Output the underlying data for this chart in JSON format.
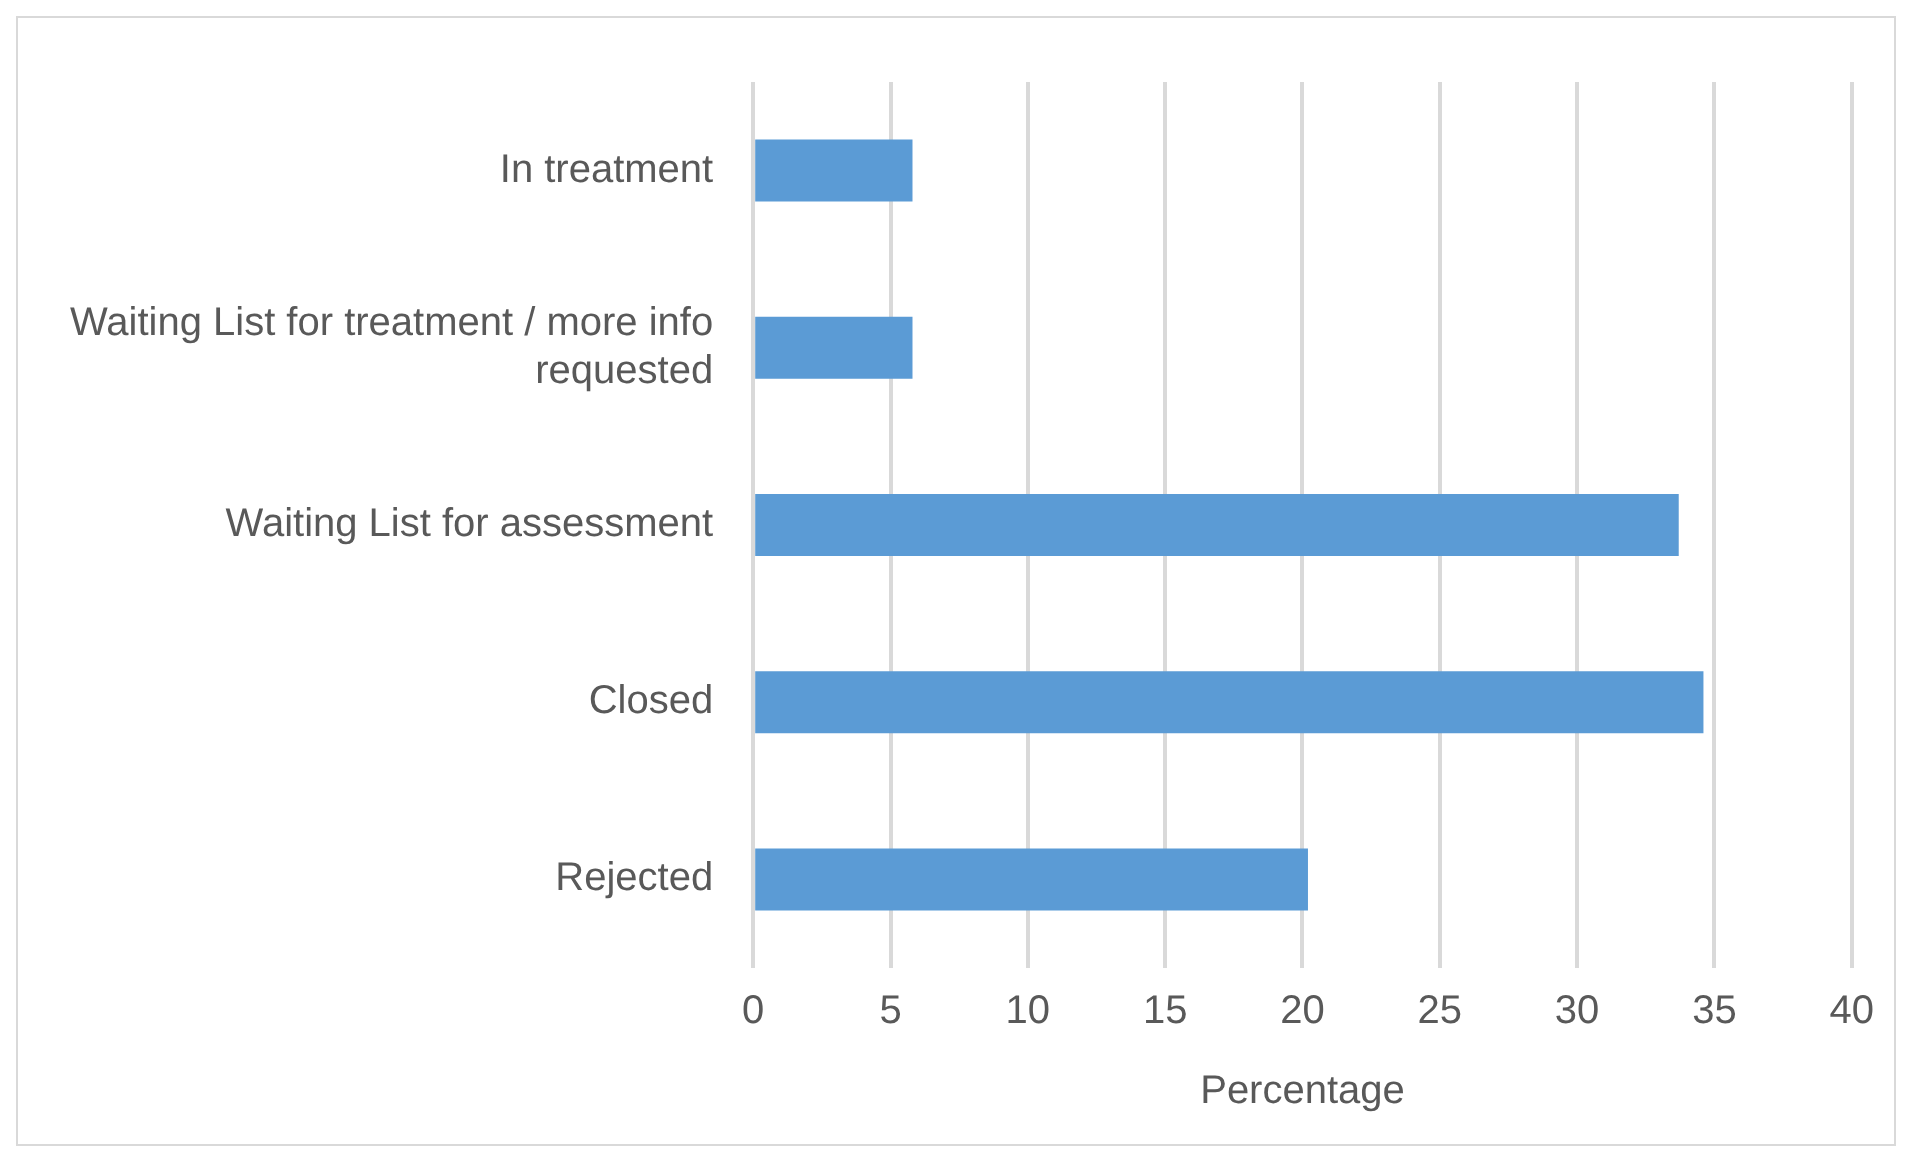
{
  "chart_data": {
    "type": "bar",
    "orientation": "horizontal",
    "xlabel": "Percentage",
    "categories": [
      "In treatment",
      "Waiting List for treatment / more info requested",
      "Waiting List for assessment",
      "Closed",
      "Rejected"
    ],
    "values": [
      5.8,
      5.8,
      33.7,
      34.6,
      20.2
    ],
    "color": "#5b9bd5",
    "xlim": [
      0,
      40
    ],
    "xticks": [
      0,
      5,
      10,
      15,
      20,
      25,
      30,
      35,
      40
    ],
    "grid": "x",
    "legend": false
  }
}
